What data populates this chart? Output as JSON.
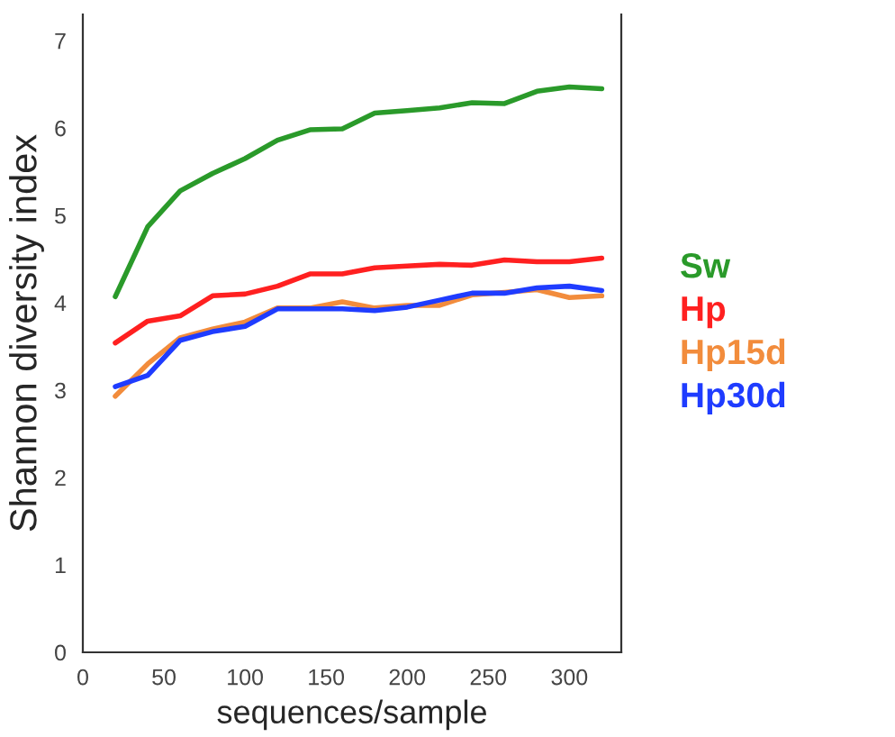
{
  "chart_data": {
    "type": "line",
    "xlabel": "sequences/sample",
    "ylabel": "Shannon diversity index",
    "x": [
      20,
      40,
      60,
      80,
      100,
      120,
      140,
      160,
      180,
      200,
      220,
      240,
      260,
      280,
      300,
      320
    ],
    "series": [
      {
        "name": "Sw",
        "color": "#2a9a2a",
        "values": [
          4.07,
          4.87,
          5.28,
          5.48,
          5.65,
          5.86,
          5.98,
          5.99,
          6.17,
          6.2,
          6.23,
          6.29,
          6.28,
          6.42,
          6.47,
          6.45
        ]
      },
      {
        "name": "Hp",
        "color": "#ff2020",
        "values": [
          3.54,
          3.79,
          3.85,
          4.08,
          4.1,
          4.19,
          4.33,
          4.33,
          4.4,
          4.42,
          4.44,
          4.43,
          4.49,
          4.47,
          4.47,
          4.51
        ]
      },
      {
        "name": "Hp15d",
        "color": "#f28c3c",
        "values": [
          2.93,
          3.3,
          3.6,
          3.7,
          3.78,
          3.94,
          3.94,
          4.01,
          3.94,
          3.97,
          3.97,
          4.09,
          4.12,
          4.15,
          4.06,
          4.08
        ]
      },
      {
        "name": "Hp30d",
        "color": "#1f3cff",
        "values": [
          3.04,
          3.17,
          3.57,
          3.67,
          3.73,
          3.93,
          3.93,
          3.93,
          3.91,
          3.95,
          4.03,
          4.11,
          4.11,
          4.17,
          4.19,
          4.14
        ]
      }
    ],
    "xlim": [
      0,
      332
    ],
    "ylim": [
      0,
      7.3
    ],
    "xticks": [
      0,
      50,
      100,
      150,
      200,
      250,
      300
    ],
    "yticks": [
      0,
      1,
      2,
      3,
      4,
      5,
      6,
      7
    ],
    "grid": false,
    "legend": "right",
    "marker": "none",
    "line_style": "solid"
  }
}
